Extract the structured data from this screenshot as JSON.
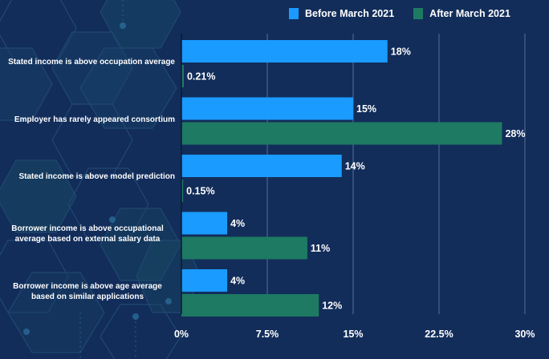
{
  "chart_data": {
    "type": "bar",
    "orientation": "horizontal",
    "title": "",
    "xlabel": "",
    "ylabel": "",
    "categories": [
      "Stated income is above occupation average",
      "Employer has rarely appeared consortium",
      "Stated income is above model prediction",
      "Borrower income is above occupational average based on external salary data",
      "Borrower income is above age average based on similar applications"
    ],
    "category_lines": [
      [
        "Stated income is above occupation average"
      ],
      [
        "Employer has rarely appeared consortium"
      ],
      [
        "Stated income is above model prediction"
      ],
      [
        "Borrower income is above occupational",
        "average based on external salary data"
      ],
      [
        "Borrower income is above age average",
        "based on similar applications"
      ]
    ],
    "series": [
      {
        "name": "Before March 2021",
        "color": "#1a9bff",
        "values": [
          18,
          15,
          14,
          4,
          4
        ],
        "labels": [
          "18%",
          "15%",
          "14%",
          "4%",
          "4%"
        ]
      },
      {
        "name": "After March 2021",
        "color": "#1e7a63",
        "values": [
          0.21,
          28,
          0.15,
          11,
          12
        ],
        "labels": [
          "0.21%",
          "28%",
          "0.15%",
          "11%",
          "12%"
        ]
      }
    ],
    "xlim": [
      0,
      30
    ],
    "xticks": [
      0,
      7.5,
      15,
      22.5,
      30
    ],
    "xtick_labels": [
      "0%",
      "7.5%",
      "15%",
      "22.5%",
      "30%"
    ],
    "grid": true,
    "legend_position": "top-right"
  },
  "colors": {
    "background": "#122d5a",
    "gridline": "#4a6590",
    "axis": "#0b1a33",
    "text": "#ffffff"
  }
}
